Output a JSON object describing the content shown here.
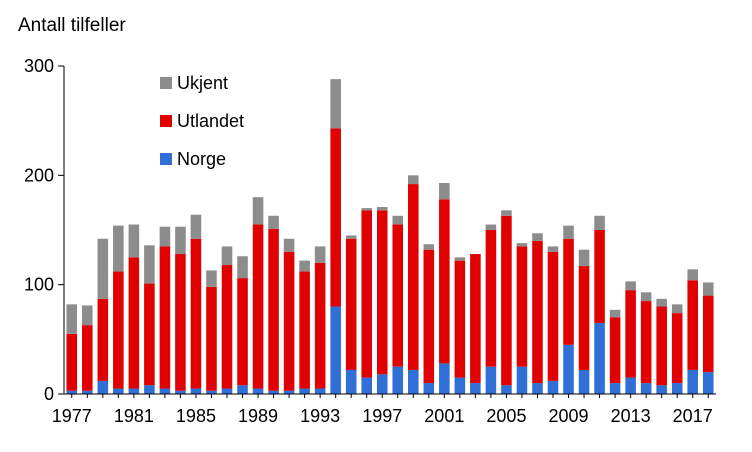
{
  "chart_data": {
    "type": "bar",
    "stacked": true,
    "ylabel": "Antall tilfeller",
    "xlabel": "",
    "ylim": [
      0,
      300
    ],
    "yticks": [
      0,
      100,
      200,
      300
    ],
    "xtick_labels": [
      "1977",
      "1981",
      "1985",
      "1989",
      "1993",
      "1997",
      "2001",
      "2005",
      "2009",
      "2013",
      "2017"
    ],
    "categories": [
      "1977",
      "1978",
      "1979",
      "1980",
      "1981",
      "1982",
      "1983",
      "1984",
      "1985",
      "1986",
      "1987",
      "1988",
      "1989",
      "1990",
      "1991",
      "1992",
      "1993",
      "1994",
      "1995",
      "1996",
      "1997",
      "1998",
      "1999",
      "2000",
      "2001",
      "2002",
      "2003",
      "2004",
      "2005",
      "2006",
      "2007",
      "2008",
      "2009",
      "2010",
      "2011",
      "2012",
      "2013",
      "2014",
      "2015",
      "2016",
      "2017",
      "2018"
    ],
    "legend_position": "top-left",
    "legend_order": [
      "Ukjent",
      "Utlandet",
      "Norge"
    ],
    "series": [
      {
        "name": "Norge",
        "color": "#2f6fd6",
        "values": [
          3,
          3,
          12,
          5,
          5,
          8,
          5,
          3,
          5,
          3,
          5,
          8,
          5,
          3,
          3,
          5,
          5,
          80,
          22,
          15,
          18,
          25,
          22,
          10,
          28,
          15,
          10,
          25,
          8,
          25,
          10,
          12,
          45,
          22,
          65,
          10,
          15,
          10,
          8,
          10,
          22,
          20
        ]
      },
      {
        "name": "Utlandet",
        "color": "#e00000",
        "values": [
          52,
          60,
          75,
          107,
          120,
          93,
          130,
          125,
          137,
          95,
          113,
          98,
          150,
          148,
          127,
          107,
          115,
          163,
          120,
          153,
          150,
          130,
          170,
          122,
          150,
          107,
          118,
          125,
          155,
          110,
          130,
          118,
          97,
          95,
          85,
          60,
          80,
          75,
          72,
          64,
          82,
          70
        ]
      },
      {
        "name": "Ukjent",
        "color": "#8c8c8c",
        "values": [
          27,
          18,
          55,
          42,
          30,
          35,
          18,
          25,
          22,
          15,
          17,
          20,
          25,
          12,
          12,
          10,
          15,
          45,
          3,
          2,
          3,
          8,
          8,
          5,
          15,
          3,
          0,
          5,
          5,
          3,
          7,
          5,
          12,
          15,
          13,
          7,
          8,
          8,
          7,
          8,
          10,
          12
        ]
      }
    ]
  }
}
